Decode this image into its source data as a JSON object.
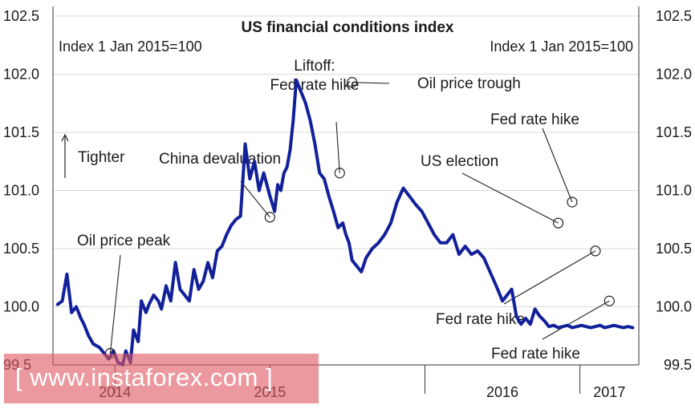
{
  "chart_data": {
    "type": "line",
    "title": "US financial conditions index",
    "subtitle_left": "Index 1 Jan 2015=100",
    "subtitle_right": "Index 1 Jan 2015=100",
    "ylim": [
      99.5,
      102.5
    ],
    "yticks": [
      "102.5",
      "102.0",
      "101.5",
      "101.0",
      "100.5",
      "100.0",
      "99.5"
    ],
    "ytick_values": [
      102.5,
      102.0,
      101.5,
      101.0,
      100.5,
      100.0,
      99.5
    ],
    "xlim": [
      2013.6,
      2017.38
    ],
    "xticks": [
      "2014",
      "2015",
      "2016",
      "2017"
    ],
    "xtick_values": [
      2014.0,
      2015.0,
      2016.0,
      2017.0
    ],
    "grid": true,
    "color": "#12209a",
    "direction_label": "Tighter",
    "series": [
      {
        "x": [
          2013.63,
          2013.66,
          2013.69,
          2013.72,
          2013.75,
          2013.78,
          2013.8,
          2013.83,
          2013.86,
          2013.9,
          2013.93,
          2013.96,
          2013.99,
          2014.02,
          2014.05,
          2014.07,
          2014.1,
          2014.12,
          2014.15,
          2014.17,
          2014.2,
          2014.22,
          2014.25,
          2014.28,
          2014.3,
          2014.33,
          2014.36,
          2014.39,
          2014.42,
          2014.45,
          2014.48,
          2014.51,
          2014.54,
          2014.57,
          2014.6,
          2014.63,
          2014.66,
          2014.69,
          2014.72,
          2014.75,
          2014.78,
          2014.81,
          2014.84,
          2014.87,
          2014.9,
          2014.93,
          2014.96,
          2015.0,
          2015.03,
          2015.05,
          2015.07,
          2015.09,
          2015.11,
          2015.13,
          2015.15,
          2015.17,
          2015.2,
          2015.23,
          2015.26,
          2015.29,
          2015.32,
          2015.35,
          2015.38,
          2015.41,
          2015.44,
          2015.47,
          2015.49,
          2015.51,
          2015.53,
          2015.56,
          2015.59,
          2015.62,
          2015.66,
          2015.7,
          2015.74,
          2015.78,
          2015.82,
          2015.86,
          2015.9,
          2015.94,
          2015.98,
          2016.02,
          2016.06,
          2016.1,
          2016.14,
          2016.18,
          2016.22,
          2016.26,
          2016.3,
          2016.34,
          2016.38,
          2016.42,
          2016.46,
          2016.5,
          2016.53,
          2016.56,
          2016.59,
          2016.62,
          2016.65,
          2016.68,
          2016.71,
          2016.74,
          2016.77,
          2016.8,
          2016.83,
          2016.86,
          2016.89,
          2016.92,
          2016.95,
          2016.98,
          2017.01,
          2017.04,
          2017.07,
          2017.1,
          2017.13,
          2017.16,
          2017.19,
          2017.22,
          2017.25,
          2017.28,
          2017.31,
          2017.34
        ],
        "y": [
          100.02,
          100.05,
          100.28,
          99.95,
          100.0,
          99.9,
          99.85,
          99.75,
          99.68,
          99.65,
          99.6,
          99.55,
          99.62,
          99.52,
          99.5,
          99.62,
          99.52,
          99.8,
          99.7,
          100.05,
          99.95,
          100.02,
          100.1,
          100.05,
          99.98,
          100.18,
          100.05,
          100.38,
          100.15,
          100.1,
          100.05,
          100.32,
          100.15,
          100.22,
          100.38,
          100.25,
          100.48,
          100.52,
          100.62,
          100.7,
          100.75,
          100.78,
          101.4,
          101.1,
          101.25,
          101.0,
          101.15,
          100.95,
          100.82,
          101.05,
          101.0,
          101.15,
          101.2,
          101.35,
          101.6,
          101.95,
          101.85,
          101.75,
          101.6,
          101.4,
          101.15,
          101.1,
          100.95,
          100.82,
          100.68,
          100.72,
          100.62,
          100.55,
          100.4,
          100.35,
          100.3,
          100.42,
          100.5,
          100.55,
          100.62,
          100.72,
          100.9,
          101.02,
          100.95,
          100.88,
          100.82,
          100.72,
          100.62,
          100.55,
          100.55,
          100.62,
          100.45,
          100.52,
          100.45,
          100.48,
          100.42,
          100.3,
          100.18,
          100.05,
          100.1,
          100.15,
          99.92,
          99.85,
          99.9,
          99.85,
          99.98,
          99.92,
          99.88,
          99.83,
          99.84,
          99.82,
          99.83,
          99.84,
          99.82,
          99.83,
          99.84,
          99.83,
          99.82,
          99.83,
          99.84,
          99.82,
          99.83,
          99.84,
          99.83,
          99.82,
          99.83,
          99.82
        ]
      }
    ],
    "annotations": [
      {
        "lines": [
          "Oil price peak"
        ],
        "x": 2013.97,
        "y": 99.6
      },
      {
        "lines": [
          "China devaluation"
        ],
        "x": 2015.0,
        "y": 100.77
      },
      {
        "lines": [
          "Liftoff:",
          "Fed rate hike"
        ],
        "x": 2015.45,
        "y": 101.15
      },
      {
        "lines": [
          "Oil price trough"
        ],
        "x": 2015.53,
        "y": 101.93
      },
      {
        "lines": [
          "US election"
        ],
        "x": 2016.86,
        "y": 100.72
      },
      {
        "lines": [
          "Fed rate hike"
        ],
        "x": 2016.95,
        "y": 100.9
      },
      {
        "lines": [
          "Fed rate hike"
        ],
        "x": 2017.1,
        "y": 100.48
      },
      {
        "lines": [
          "Fed rate hike"
        ],
        "x": 2017.19,
        "y": 100.05
      }
    ]
  },
  "watermark": {
    "text": "[ www.instaforex.com ]"
  }
}
